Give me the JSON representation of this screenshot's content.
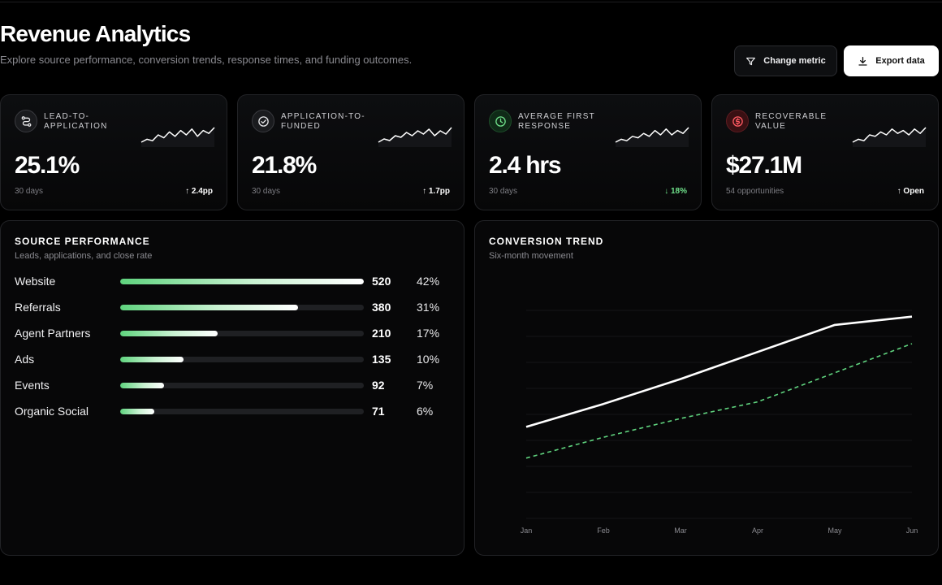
{
  "header": {
    "title": "Revenue Analytics",
    "subtitle": "Explore source performance, conversion trends, response times, and funding outcomes.",
    "change_metric_label": "Change metric",
    "export_label": "Export data"
  },
  "kpis": [
    {
      "label": "LEAD-TO-APPLICATION",
      "value": "25.1%",
      "period": "30 days",
      "delta": "↑ 2.4pp",
      "icon": "route-icon",
      "spark": [
        4,
        6,
        5,
        9,
        7,
        11,
        8,
        12,
        9,
        13,
        8,
        12,
        10,
        14
      ]
    },
    {
      "label": "APPLICATION-TO-FUNDED",
      "value": "21.8%",
      "period": "30 days",
      "delta": "↑ 1.7pp",
      "icon": "check-circle-icon",
      "spark": [
        5,
        7,
        6,
        9,
        8,
        11,
        9,
        12,
        10,
        13,
        9,
        12,
        10,
        14
      ]
    },
    {
      "label": "AVERAGE FIRST RESPONSE",
      "value": "2.4 hrs",
      "period": "30 days",
      "delta": "↓ 18%",
      "icon": "clock-icon",
      "spark": [
        4,
        6,
        5,
        8,
        7,
        10,
        8,
        12,
        9,
        13,
        9,
        12,
        10,
        14
      ]
    },
    {
      "label": "RECOVERABLE VALUE",
      "value": "$27.1M",
      "period": "54 opportunities",
      "delta": "↑ Open",
      "icon": "dollar-icon",
      "spark": [
        4,
        6,
        5,
        9,
        8,
        11,
        9,
        13,
        10,
        12,
        9,
        13,
        10,
        14
      ]
    }
  ],
  "source_performance": {
    "title": "SOURCE PERFORMANCE",
    "subtitle": "Leads, applications, and close rate",
    "rows": [
      {
        "name": "Website",
        "count": "520",
        "pct": "42%",
        "fill": 1.0
      },
      {
        "name": "Referrals",
        "count": "380",
        "pct": "31%",
        "fill": 0.73
      },
      {
        "name": "Agent Partners",
        "count": "210",
        "pct": "17%",
        "fill": 0.4
      },
      {
        "name": "Ads",
        "count": "135",
        "pct": "10%",
        "fill": 0.26
      },
      {
        "name": "Events",
        "count": "92",
        "pct": "7%",
        "fill": 0.18
      },
      {
        "name": "Organic Social",
        "count": "71",
        "pct": "6%",
        "fill": 0.14
      }
    ]
  },
  "conversion_trend": {
    "title": "CONVERSION TREND",
    "subtitle": "Six-month movement"
  },
  "chart_data": {
    "type": "line",
    "title": "CONVERSION TREND",
    "subtitle": "Six-month movement",
    "x": [
      "Jan",
      "Feb",
      "Mar",
      "Apr",
      "May",
      "Jun"
    ],
    "ylim": [
      0,
      100
    ],
    "grid": true,
    "series": [
      {
        "values": [
          44,
          55,
          67,
          80,
          93,
          97
        ],
        "color": "#ffffff",
        "style": "solid"
      },
      {
        "values": [
          29,
          39,
          48,
          56,
          70,
          84
        ],
        "color": "#5fd37e",
        "style": "dashed"
      }
    ]
  }
}
